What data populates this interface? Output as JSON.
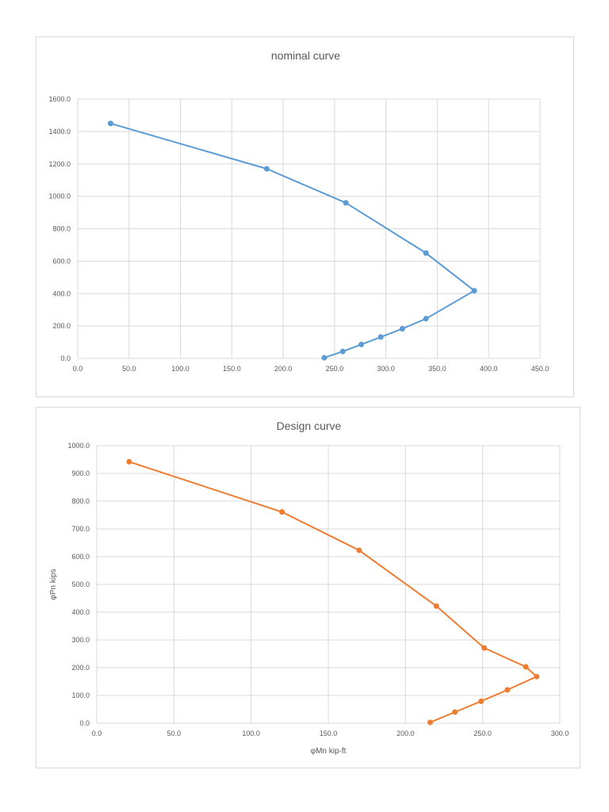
{
  "chart_data": [
    {
      "type": "scatter",
      "title": "nominal curve",
      "xlabel": "",
      "ylabel": "",
      "xlim": [
        0,
        450
      ],
      "ylim": [
        0,
        1600
      ],
      "x_ticks": [
        "0.0",
        "50.0",
        "100.0",
        "150.0",
        "200.0",
        "250.0",
        "300.0",
        "350.0",
        "400.0",
        "450.0"
      ],
      "y_ticks": [
        "0.0",
        "200.0",
        "400.0",
        "600.0",
        "800.0",
        "1000.0",
        "1200.0",
        "1400.0",
        "1600.0"
      ],
      "grid": true,
      "legend": "none",
      "color": "#5b9bd5",
      "series": [
        {
          "points": [
            [
              32,
              1450
            ],
            [
              184,
              1170
            ],
            [
              261,
              960
            ],
            [
              339,
              650
            ],
            [
              386,
              418
            ],
            [
              339,
              245
            ],
            [
              316,
              183
            ],
            [
              295,
              132
            ],
            [
              276,
              86
            ],
            [
              258,
              43
            ],
            [
              240,
              4
            ]
          ]
        }
      ]
    },
    {
      "type": "scatter",
      "title": "Design curve",
      "xlabel": "φMn kip-ft",
      "ylabel": "φPn kips",
      "xlim": [
        0,
        300
      ],
      "ylim": [
        0,
        1000
      ],
      "x_ticks": [
        "0.0",
        "50.0",
        "100.0",
        "150.0",
        "200.0",
        "250.0",
        "300.0"
      ],
      "y_ticks": [
        "0.0",
        "100.0",
        "200.0",
        "300.0",
        "400.0",
        "500.0",
        "600.0",
        "700.0",
        "800.0",
        "900.0",
        "1000.0"
      ],
      "grid": true,
      "legend": "none",
      "color": "#ed7d31",
      "series": [
        {
          "points": [
            [
              21,
              942
            ],
            [
              120,
              761
            ],
            [
              170,
              623
            ],
            [
              220,
              422
            ],
            [
              251,
              271
            ],
            [
              278,
              203
            ],
            [
              285,
              168
            ],
            [
              266,
              120
            ],
            [
              249,
              79
            ],
            [
              232,
              40
            ],
            [
              216,
              3
            ]
          ]
        }
      ]
    }
  ]
}
